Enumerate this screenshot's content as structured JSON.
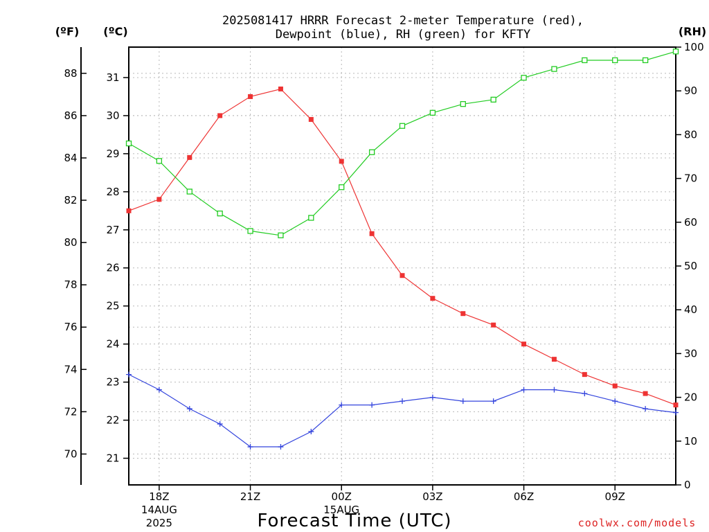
{
  "chart_data": {
    "type": "line",
    "title_line1": "2025081417 HRRR Forecast 2-meter Temperature (red),",
    "title_line2": "Dewpoint (blue), RH (green) for KFTY",
    "xlabel": "Forecast Time (UTC)",
    "credit": "coolwx.com/models",
    "unit_left_f": "(ºF)",
    "unit_left_c": "(ºC)",
    "unit_right": "(RH)",
    "x_ticks": [
      {
        "hour": 1,
        "lines": [
          "18Z",
          "14AUG",
          "2025"
        ]
      },
      {
        "hour": 4,
        "lines": [
          "21Z"
        ]
      },
      {
        "hour": 7,
        "lines": [
          "00Z",
          "15AUG"
        ]
      },
      {
        "hour": 10,
        "lines": [
          "03Z"
        ]
      },
      {
        "hour": 13,
        "lines": [
          "06Z"
        ]
      },
      {
        "hour": 16,
        "lines": [
          "09Z"
        ]
      }
    ],
    "x_hours": [
      0,
      1,
      2,
      3,
      4,
      5,
      6,
      7,
      8,
      9,
      10,
      11,
      12,
      13,
      14,
      15,
      16,
      17,
      18
    ],
    "x_range_hours": [
      0,
      18
    ],
    "c_range": [
      20.3,
      31.8
    ],
    "c_ticks": [
      21,
      22,
      23,
      24,
      25,
      26,
      27,
      28,
      29,
      30,
      31
    ],
    "f_ticks": [
      70,
      72,
      74,
      76,
      78,
      80,
      82,
      84,
      86,
      88
    ],
    "rh_range": [
      0,
      100
    ],
    "rh_ticks": [
      0,
      10,
      20,
      30,
      40,
      50,
      60,
      70,
      80,
      90,
      100
    ],
    "grid": true,
    "series": [
      {
        "name": "Temperature",
        "unit": "C",
        "color": "#ee3333",
        "marker": "filled-square",
        "values": [
          27.5,
          27.8,
          28.9,
          30.0,
          30.5,
          30.7,
          29.9,
          28.8,
          26.9,
          25.8,
          25.2,
          24.8,
          24.5,
          24.0,
          23.6,
          23.2,
          22.9,
          22.7,
          22.4
        ]
      },
      {
        "name": "Dewpoint",
        "unit": "C",
        "color": "#3344dd",
        "marker": "plus",
        "values": [
          23.2,
          22.8,
          22.3,
          21.9,
          21.3,
          21.3,
          21.7,
          22.4,
          22.4,
          22.5,
          22.6,
          22.5,
          22.5,
          22.8,
          22.8,
          22.7,
          22.5,
          22.3,
          22.2
        ]
      },
      {
        "name": "RH",
        "unit": "%",
        "color": "#22cc22",
        "marker": "open-square",
        "values": [
          78,
          74,
          67,
          62,
          58,
          57,
          61,
          68,
          76,
          82,
          85,
          87,
          88,
          93,
          95,
          97,
          97,
          97,
          99
        ]
      }
    ]
  }
}
